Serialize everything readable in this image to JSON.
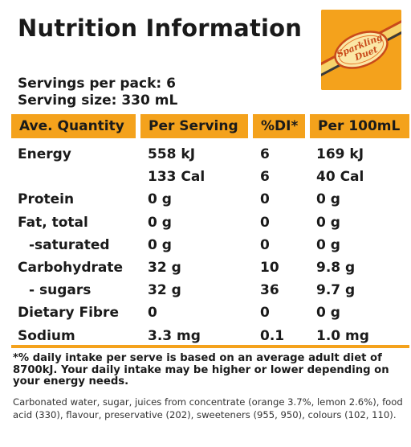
{
  "title": "Nutrition Information",
  "logo": {
    "text_line1": "Sparkling",
    "text_line2": "Duet",
    "background": "#f4a21c"
  },
  "servings": {
    "per_pack": "Servings per pack: 6",
    "serving_size": "Serving size: 330 mL"
  },
  "table": {
    "headers": [
      "Ave. Quantity",
      "Per Serving",
      "%DI*",
      "Per 100mL"
    ],
    "rows": [
      {
        "label": "Energy",
        "per_serving": "558 kJ",
        "di": "6",
        "per_100": "169 kJ"
      },
      {
        "label": "",
        "per_serving": "133 Cal",
        "di": "6",
        "per_100": "40 Cal"
      },
      {
        "label": "Protein",
        "per_serving": "0 g",
        "di": "0",
        "per_100": "0 g"
      },
      {
        "label": "Fat, total",
        "per_serving": "0 g",
        "di": "0",
        "per_100": "0 g"
      },
      {
        "label": "-saturated",
        "per_serving": "0 g",
        "di": "0",
        "per_100": "0 g"
      },
      {
        "label": "Carbohydrate",
        "per_serving": "32 g",
        "di": "10",
        "per_100": "9.8 g"
      },
      {
        "label": "- sugars",
        "per_serving": "32 g",
        "di": "36",
        "per_100": "9.7 g"
      },
      {
        "label": "Dietary Fibre",
        "per_serving": "0",
        "di": "0",
        "per_100": "0 g"
      },
      {
        "label": "Sodium",
        "per_serving": "3.3 mg",
        "di": "0.1",
        "per_100": "1.0 mg"
      }
    ]
  },
  "footnote": "*% daily intake per serve is based on an average adult diet of 8700kJ. Your daily intake may be higher or lower depending on your energy needs.",
  "ingredients": "Carbonated water, sugar, juices from concentrate (orange 3.7%, lemon 2.6%), food acid (330), flavour, preservative (202), sweeteners (955, 950), colours (102, 110).",
  "colors": {
    "accent": "#f4a21c",
    "text": "#1a1a1a"
  }
}
